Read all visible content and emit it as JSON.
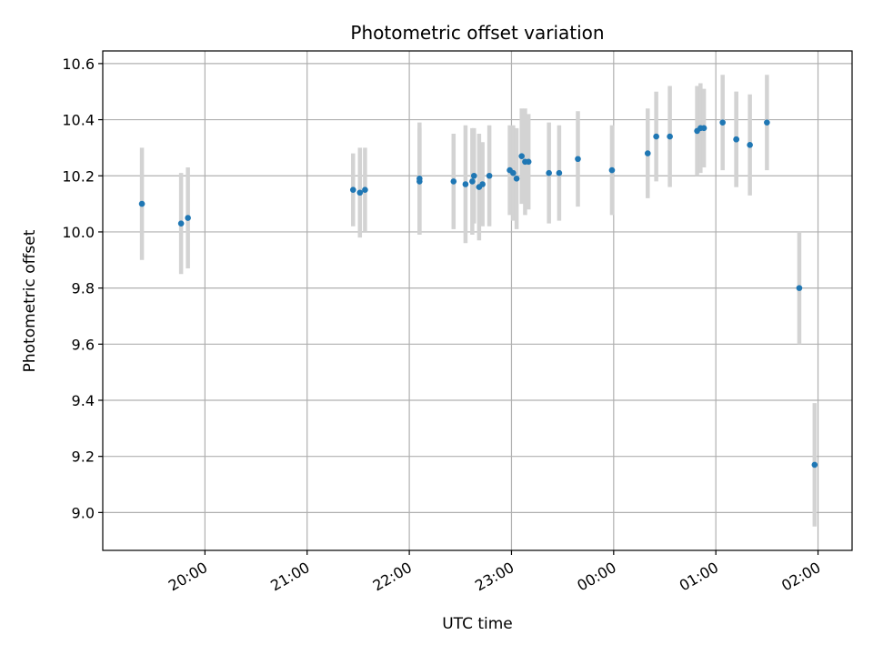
{
  "chart_data": {
    "type": "scatter",
    "title": "Photometric offset variation",
    "xlabel": "UTC time",
    "ylabel": "Photometric offset",
    "xlim": [
      "19:00",
      "02:20"
    ],
    "ylim": [
      8.865,
      10.645
    ],
    "grid": true,
    "x_ticks": [
      "20:00",
      "21:00",
      "22:00",
      "23:00",
      "00:00",
      "01:00",
      "02:00"
    ],
    "y_ticks": [
      "9.0",
      "9.2",
      "9.4",
      "9.6",
      "9.8",
      "10.0",
      "10.2",
      "10.4",
      "10.6"
    ],
    "x_tick_rotation": 30,
    "colors": {
      "point": "#1f77b4",
      "errorbar": "#d3d3d3",
      "grid": "#b0b0b0"
    },
    "points": [
      {
        "t": "19:23",
        "y": 10.1,
        "err": 0.2
      },
      {
        "t": "19:46",
        "y": 10.03,
        "err": 0.18
      },
      {
        "t": "19:50",
        "y": 10.05,
        "err": 0.18
      },
      {
        "t": "21:27",
        "y": 10.15,
        "err": 0.13
      },
      {
        "t": "21:31",
        "y": 10.14,
        "err": 0.16
      },
      {
        "t": "21:34",
        "y": 10.15,
        "err": 0.15
      },
      {
        "t": "22:06",
        "y": 10.19,
        "err": 0.2
      },
      {
        "t": "22:06",
        "y": 10.18,
        "err": 0.19
      },
      {
        "t": "22:26",
        "y": 10.18,
        "err": 0.17
      },
      {
        "t": "22:33",
        "y": 10.17,
        "err": 0.21
      },
      {
        "t": "22:37",
        "y": 10.18,
        "err": 0.19
      },
      {
        "t": "22:38",
        "y": 10.2,
        "err": 0.17
      },
      {
        "t": "22:41",
        "y": 10.16,
        "err": 0.19
      },
      {
        "t": "22:43",
        "y": 10.17,
        "err": 0.15
      },
      {
        "t": "22:47",
        "y": 10.2,
        "err": 0.18
      },
      {
        "t": "22:59",
        "y": 10.22,
        "err": 0.16
      },
      {
        "t": "23:01",
        "y": 10.21,
        "err": 0.17
      },
      {
        "t": "23:03",
        "y": 10.19,
        "err": 0.18
      },
      {
        "t": "23:06",
        "y": 10.27,
        "err": 0.17
      },
      {
        "t": "23:08",
        "y": 10.25,
        "err": 0.19
      },
      {
        "t": "23:10",
        "y": 10.25,
        "err": 0.17
      },
      {
        "t": "23:22",
        "y": 10.21,
        "err": 0.18
      },
      {
        "t": "23:28",
        "y": 10.21,
        "err": 0.17
      },
      {
        "t": "23:39",
        "y": 10.26,
        "err": 0.17
      },
      {
        "t": "23:59",
        "y": 10.22,
        "err": 0.16
      },
      {
        "t": "00:20",
        "y": 10.28,
        "err": 0.16
      },
      {
        "t": "00:25",
        "y": 10.34,
        "err": 0.16
      },
      {
        "t": "00:33",
        "y": 10.34,
        "err": 0.18
      },
      {
        "t": "00:49",
        "y": 10.36,
        "err": 0.16
      },
      {
        "t": "00:51",
        "y": 10.37,
        "err": 0.16
      },
      {
        "t": "00:53",
        "y": 10.37,
        "err": 0.14
      },
      {
        "t": "01:04",
        "y": 10.39,
        "err": 0.17
      },
      {
        "t": "01:12",
        "y": 10.33,
        "err": 0.17
      },
      {
        "t": "01:12",
        "y": 10.33,
        "err": 0.17
      },
      {
        "t": "01:20",
        "y": 10.31,
        "err": 0.18
      },
      {
        "t": "01:30",
        "y": 10.39,
        "err": 0.17
      },
      {
        "t": "01:49",
        "y": 9.8,
        "err": 0.2
      },
      {
        "t": "01:58",
        "y": 9.17,
        "err": 0.22
      }
    ]
  }
}
